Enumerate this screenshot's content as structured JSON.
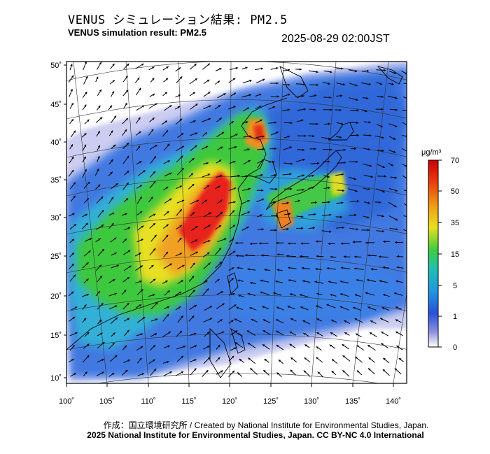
{
  "header": {
    "title_jp": "VENUS シミュレーション結果: PM2.5",
    "title_en": "VENUS simulation result: PM2.5",
    "timestamp": "2025-08-29 02:00JST"
  },
  "map": {
    "lat_labels": [
      "50˚",
      "45˚",
      "40˚",
      "35˚",
      "30˚",
      "25˚",
      "20˚",
      "15˚",
      "10˚"
    ],
    "lon_labels": [
      "100˚",
      "105˚",
      "110˚",
      "115˚",
      "120˚",
      "125˚",
      "130˚",
      "135˚",
      "140˚"
    ],
    "lat_range": [
      10,
      50
    ],
    "lon_range": [
      100,
      140
    ],
    "colors": {
      "very_high": "#e8201c",
      "high": "#f0a020",
      "mid": "#3cc83c",
      "low": "#30a8d8",
      "very_low": "#3070e0",
      "clean": "#c8c8f0",
      "land_outline": "#000000"
    }
  },
  "colorbar": {
    "unit": "μg/m³",
    "ticks": [
      "70",
      "50",
      "35",
      "15",
      "5",
      "1",
      "0"
    ],
    "stops": [
      "#e01010",
      "#f08010",
      "#f0e020",
      "#40d040",
      "#20c0c0",
      "#2060e0",
      "#8080e0",
      "#ffffff"
    ]
  },
  "footer": {
    "credit": "作成：国立環境研究所 / Created by National Institute for Environmental Studies, Japan.",
    "license": "2025 National Institute for Environmental Studies, Japan. CC BY-NC 4.0 International"
  }
}
